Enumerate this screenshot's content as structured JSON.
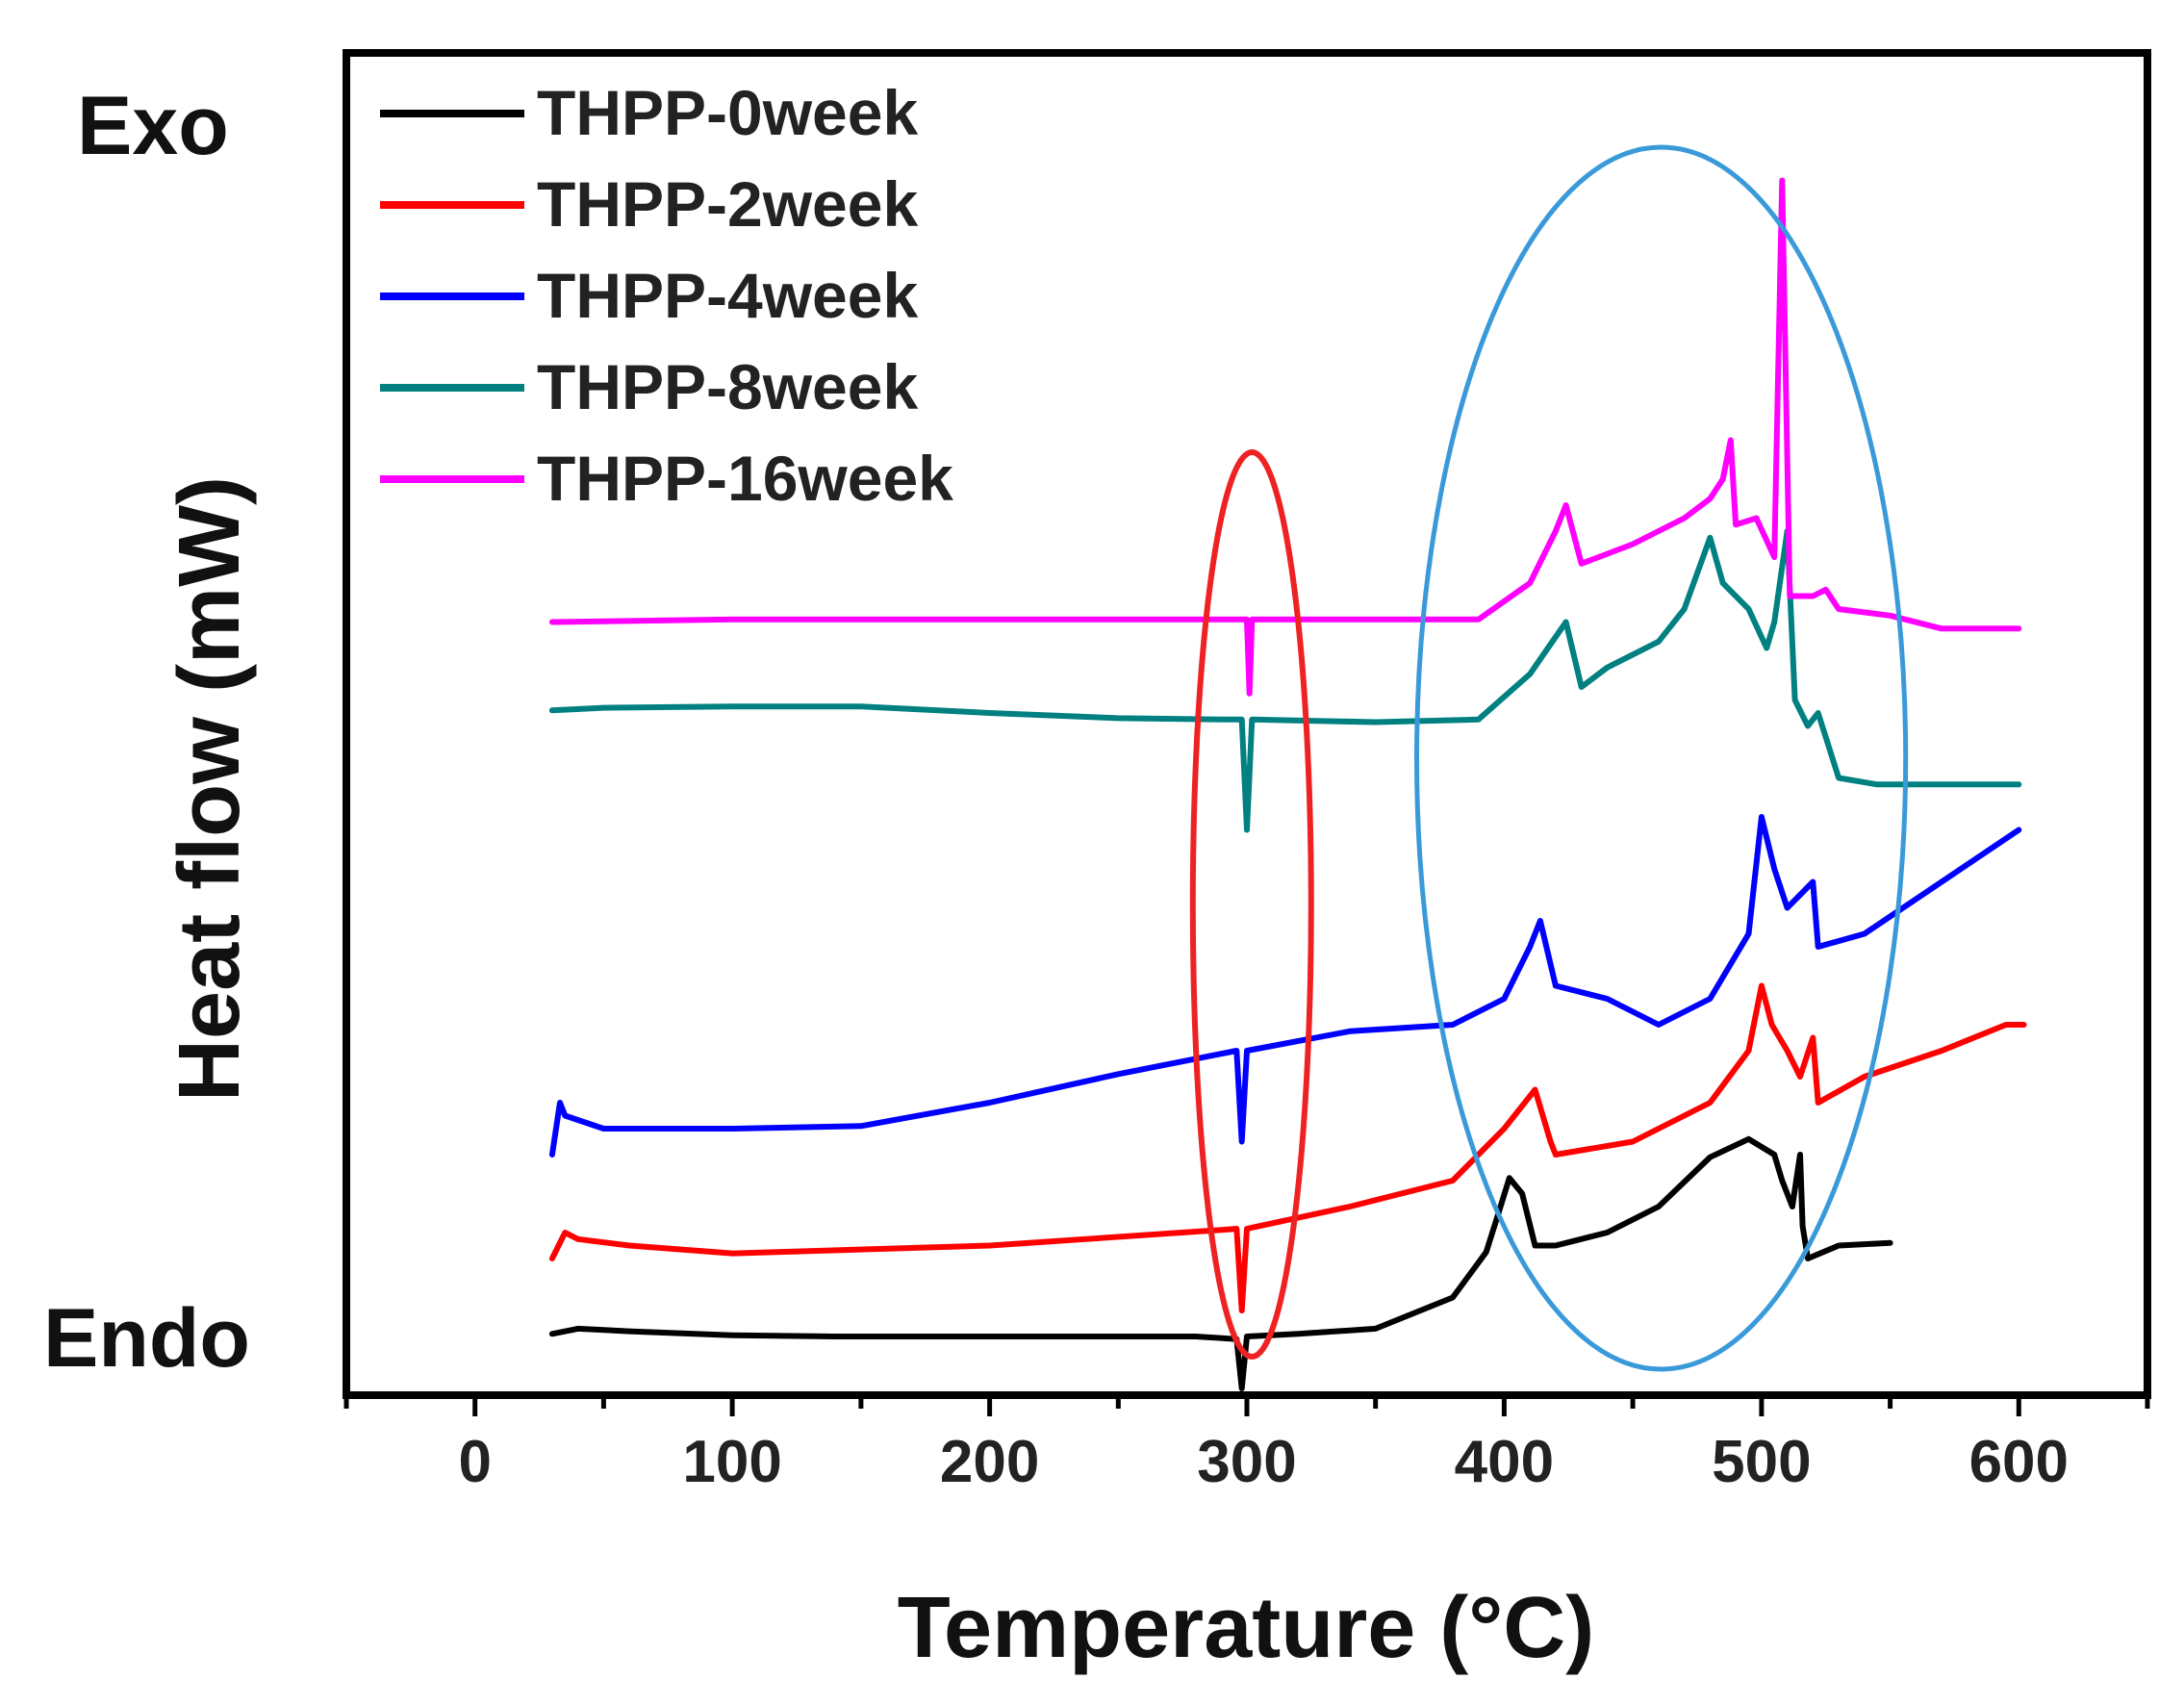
{
  "chart_data": {
    "type": "line",
    "title": "",
    "xlabel": "Temperature (°C)",
    "ylabel": "Heat flow (mW)",
    "xlim": [
      -50,
      650
    ],
    "xticks": [
      0,
      100,
      200,
      300,
      400,
      500,
      600
    ],
    "xtick_labels": [
      "0",
      "100",
      "200",
      "300",
      "400",
      "500",
      "600"
    ],
    "yticks_shown": false,
    "annotations": {
      "top": "Exo",
      "bottom": "Endo"
    },
    "legend": {
      "placement": "top-left"
    },
    "highlights": [
      {
        "shape": "ellipse",
        "color": "#ee2222",
        "x_center": 302,
        "x_half_width": 23,
        "note": "endothermic dip near 300 °C"
      },
      {
        "shape": "ellipse",
        "color": "#3a9ad9",
        "x_center": 461,
        "x_half_width": 95,
        "note": "exothermic peaks 400–530 °C"
      }
    ],
    "series": [
      {
        "name": "THPP-0week",
        "color": "#000000",
        "points": [
          [
            30,
            0.62
          ],
          [
            40,
            0.66
          ],
          [
            60,
            0.64
          ],
          [
            100,
            0.61
          ],
          [
            140,
            0.6
          ],
          [
            200,
            0.6
          ],
          [
            280,
            0.6
          ],
          [
            296,
            0.58
          ],
          [
            298,
            0.2
          ],
          [
            300,
            0.6
          ],
          [
            320,
            0.62
          ],
          [
            350,
            0.66
          ],
          [
            380,
            0.9
          ],
          [
            393,
            1.25
          ],
          [
            397,
            1.5
          ],
          [
            402,
            1.82
          ],
          [
            407,
            1.7
          ],
          [
            412,
            1.3
          ],
          [
            420,
            1.3
          ],
          [
            440,
            1.4
          ],
          [
            460,
            1.6
          ],
          [
            480,
            1.98
          ],
          [
            495,
            2.12
          ],
          [
            505,
            2.0
          ],
          [
            508,
            1.8
          ],
          [
            512,
            1.6
          ],
          [
            515,
            2.0
          ],
          [
            516,
            1.45
          ],
          [
            518,
            1.2
          ],
          [
            530,
            1.3
          ],
          [
            550,
            1.32
          ]
        ]
      },
      {
        "name": "THPP-2week",
        "color": "#ff0000",
        "points": [
          [
            30,
            1.2
          ],
          [
            35,
            1.4
          ],
          [
            40,
            1.35
          ],
          [
            60,
            1.3
          ],
          [
            100,
            1.24
          ],
          [
            200,
            1.3
          ],
          [
            290,
            1.42
          ],
          [
            296,
            1.43
          ],
          [
            298,
            0.8
          ],
          [
            300,
            1.43
          ],
          [
            340,
            1.6
          ],
          [
            380,
            1.8
          ],
          [
            400,
            2.2
          ],
          [
            412,
            2.5
          ],
          [
            418,
            2.1
          ],
          [
            420,
            2.0
          ],
          [
            450,
            2.1
          ],
          [
            480,
            2.4
          ],
          [
            495,
            2.8
          ],
          [
            500,
            3.3
          ],
          [
            504,
            3.0
          ],
          [
            510,
            2.8
          ],
          [
            515,
            2.6
          ],
          [
            520,
            2.9
          ],
          [
            522,
            2.4
          ],
          [
            540,
            2.6
          ],
          [
            570,
            2.8
          ],
          [
            595,
            3.0
          ],
          [
            602,
            3.0
          ]
        ]
      },
      {
        "name": "THPP-4week",
        "color": "#0000ff",
        "points": [
          [
            30,
            2.0
          ],
          [
            33,
            2.4
          ],
          [
            35,
            2.3
          ],
          [
            50,
            2.2
          ],
          [
            100,
            2.2
          ],
          [
            150,
            2.22
          ],
          [
            200,
            2.4
          ],
          [
            250,
            2.62
          ],
          [
            296,
            2.8
          ],
          [
            298,
            2.1
          ],
          [
            300,
            2.8
          ],
          [
            340,
            2.95
          ],
          [
            380,
            3.0
          ],
          [
            400,
            3.2
          ],
          [
            410,
            3.6
          ],
          [
            414,
            3.8
          ],
          [
            420,
            3.3
          ],
          [
            440,
            3.2
          ],
          [
            460,
            3.0
          ],
          [
            480,
            3.2
          ],
          [
            495,
            3.7
          ],
          [
            500,
            4.6
          ],
          [
            505,
            4.2
          ],
          [
            510,
            3.9
          ],
          [
            515,
            4.0
          ],
          [
            520,
            4.1
          ],
          [
            522,
            3.6
          ],
          [
            540,
            3.7
          ],
          [
            570,
            4.1
          ],
          [
            600,
            4.5
          ]
        ]
      },
      {
        "name": "THPP-8week",
        "color": "#008080",
        "points": [
          [
            30,
            5.42
          ],
          [
            50,
            5.44
          ],
          [
            100,
            5.45
          ],
          [
            150,
            5.45
          ],
          [
            200,
            5.4
          ],
          [
            250,
            5.36
          ],
          [
            290,
            5.35
          ],
          [
            298,
            5.35
          ],
          [
            300,
            4.5
          ],
          [
            302,
            5.35
          ],
          [
            350,
            5.33
          ],
          [
            390,
            5.35
          ],
          [
            410,
            5.7
          ],
          [
            424,
            6.1
          ],
          [
            430,
            5.6
          ],
          [
            440,
            5.75
          ],
          [
            460,
            5.95
          ],
          [
            470,
            6.2
          ],
          [
            480,
            6.75
          ],
          [
            485,
            6.4
          ],
          [
            495,
            6.2
          ],
          [
            502,
            5.9
          ],
          [
            505,
            6.1
          ],
          [
            510,
            6.8
          ],
          [
            513,
            5.5
          ],
          [
            518,
            5.3
          ],
          [
            522,
            5.4
          ],
          [
            530,
            4.9
          ],
          [
            545,
            4.85
          ],
          [
            570,
            4.85
          ],
          [
            600,
            4.85
          ]
        ]
      },
      {
        "name": "THPP-16week",
        "color": "#ff00ff",
        "points": [
          [
            30,
            6.1
          ],
          [
            100,
            6.12
          ],
          [
            200,
            6.12
          ],
          [
            280,
            6.12
          ],
          [
            300,
            6.12
          ],
          [
            301,
            5.55
          ],
          [
            302,
            6.12
          ],
          [
            350,
            6.12
          ],
          [
            390,
            6.12
          ],
          [
            410,
            6.4
          ],
          [
            420,
            6.8
          ],
          [
            424,
            7.0
          ],
          [
            430,
            6.55
          ],
          [
            450,
            6.7
          ],
          [
            470,
            6.9
          ],
          [
            480,
            7.05
          ],
          [
            485,
            7.2
          ],
          [
            488,
            7.5
          ],
          [
            490,
            6.85
          ],
          [
            498,
            6.9
          ],
          [
            505,
            6.6
          ],
          [
            508,
            9.5
          ],
          [
            511,
            6.3
          ],
          [
            520,
            6.3
          ],
          [
            525,
            6.35
          ],
          [
            530,
            6.2
          ],
          [
            550,
            6.15
          ],
          [
            570,
            6.05
          ],
          [
            600,
            6.05
          ]
        ]
      }
    ]
  }
}
